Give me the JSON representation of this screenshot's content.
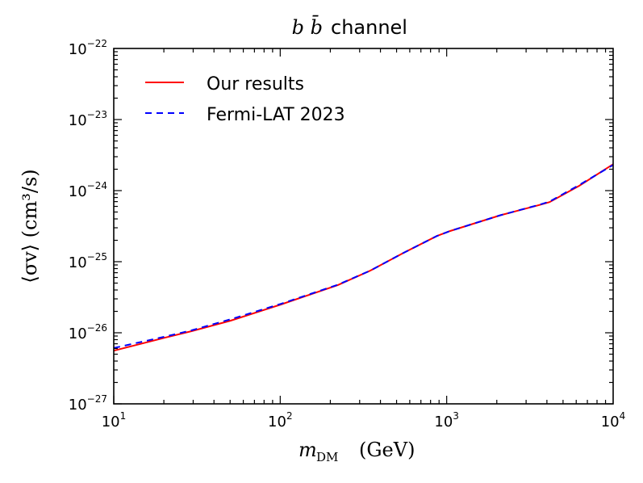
{
  "chart_data": {
    "type": "line",
    "title_math": "b b̄",
    "title_text": "channel",
    "xlabel_math": "m",
    "xlabel_sub": "DM",
    "xlabel_unit": "(GeV)",
    "ylabel": "⟨σv⟩ (cm³/s)",
    "xscale": "log",
    "yscale": "log",
    "xlim": [
      10,
      10000
    ],
    "ylim": [
      1e-27,
      1e-22
    ],
    "grid": false,
    "legend_position": "top-left",
    "x_ticks": [
      {
        "base": "10",
        "exp": "1",
        "value": 10
      },
      {
        "base": "10",
        "exp": "2",
        "value": 100
      },
      {
        "base": "10",
        "exp": "3",
        "value": 1000
      },
      {
        "base": "10",
        "exp": "4",
        "value": 10000
      }
    ],
    "y_ticks": [
      {
        "base": "10",
        "exp": "−27",
        "value": 1e-27
      },
      {
        "base": "10",
        "exp": "−26",
        "value": 1e-26
      },
      {
        "base": "10",
        "exp": "−25",
        "value": 1e-25
      },
      {
        "base": "10",
        "exp": "−24",
        "value": 1e-24
      },
      {
        "base": "10",
        "exp": "−23",
        "value": 1e-23
      },
      {
        "base": "10",
        "exp": "−22",
        "value": 1e-22
      }
    ],
    "series": [
      {
        "name": "Our results",
        "color": "#ff0000",
        "style": "solid",
        "x": [
          10,
          20.2,
          29.2,
          50.4,
          101,
          222,
          348,
          550,
          873,
          1050,
          2100,
          3620,
          4150,
          6260,
          10000
        ],
        "y": [
          5.6e-27,
          8.5e-27,
          1.05e-26,
          1.48e-26,
          2.5e-26,
          4.7e-26,
          7.5e-26,
          1.33e-25,
          2.3e-25,
          2.7e-25,
          4.5e-25,
          6.3e-25,
          6.9e-25,
          1.17e-24,
          2.35e-24
        ]
      },
      {
        "name": "Fermi-LAT 2023",
        "color": "#0000ff",
        "style": "dashed",
        "x": [
          10,
          20.2,
          29.2,
          50.4,
          101,
          222,
          348,
          550,
          873,
          1050,
          2100,
          3620,
          4150,
          6260,
          10000
        ],
        "y": [
          6.1e-27,
          8.8e-27,
          1.08e-26,
          1.55e-26,
          2.55e-26,
          4.75e-26,
          7.5e-26,
          1.33e-25,
          2.3e-25,
          2.7e-25,
          4.5e-25,
          6.35e-25,
          7e-25,
          1.2e-24,
          2.3e-24
        ]
      }
    ]
  }
}
